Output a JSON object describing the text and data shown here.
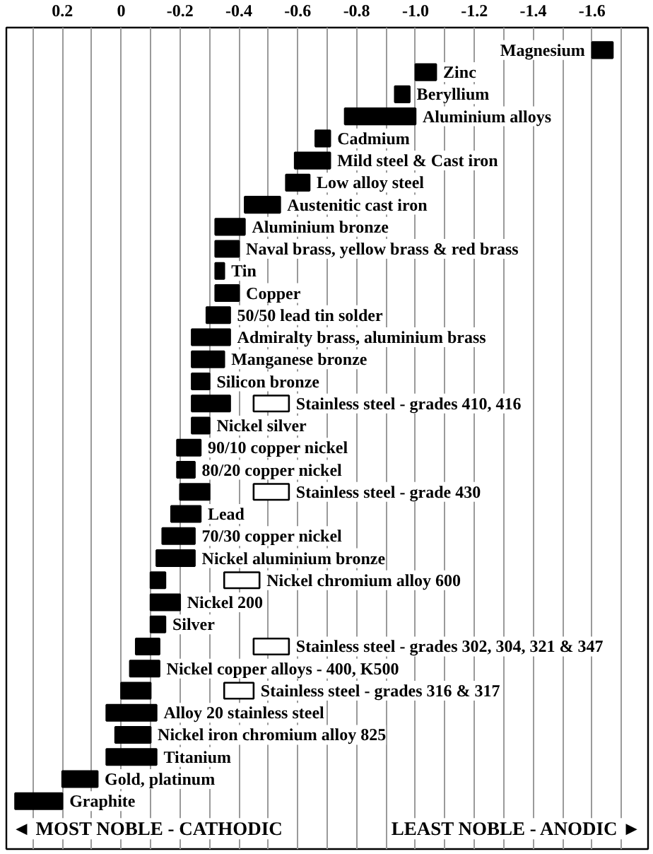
{
  "chart_data": {
    "type": "bar",
    "orientation": "horizontal",
    "categories": [
      "Magnesium",
      "Zinc",
      "Beryllium",
      "Aluminium alloys",
      "Cadmium",
      "Mild steel & Cast iron",
      "Low alloy steel",
      "Austenitic cast iron",
      "Aluminium bronze",
      "Naval brass, yellow brass & red brass",
      "Tin",
      "Copper",
      "50/50 lead tin solder",
      "Admiralty brass, aluminium brass",
      "Manganese bronze",
      "Silicon bronze",
      "Stainless steel - grades 410, 416",
      "Nickel silver",
      "90/10 copper nickel",
      "80/20 copper nickel",
      "Stainless steel - grade 430",
      "Lead",
      "70/30 copper nickel",
      "Nickel aluminium bronze",
      "Nickel chromium alloy 600",
      "Nickel 200",
      "Silver",
      "Stainless steel - grades 302, 304, 321 & 347",
      "Nickel copper alloys - 400, K500",
      "Stainless steel - grades 316 & 317",
      "Alloy 20 stainless steel",
      "Nickel iron chromium alloy 825",
      "Titanium",
      "Gold, platinum",
      "Graphite"
    ],
    "series": [
      {
        "color": "#000000",
        "base": [
          -1.6,
          -1.0,
          -0.93,
          -0.76,
          -0.66,
          -0.59,
          -0.56,
          -0.42,
          -0.32,
          -0.32,
          -0.32,
          -0.32,
          -0.29,
          -0.24,
          -0.24,
          -0.24,
          -0.24,
          -0.24,
          -0.19,
          -0.19,
          -0.2,
          -0.17,
          -0.14,
          -0.12,
          -0.1,
          -0.1,
          -0.1,
          -0.05,
          -0.03,
          0.0,
          0.05,
          0.02,
          0.05,
          0.2,
          0.36
        ],
        "values": [
          -0.07,
          -0.07,
          -0.05,
          -0.24,
          -0.05,
          -0.12,
          -0.08,
          -0.12,
          -0.1,
          -0.08,
          -0.03,
          -0.08,
          -0.08,
          -0.13,
          -0.11,
          -0.06,
          -0.13,
          -0.06,
          -0.08,
          -0.06,
          -0.1,
          -0.1,
          -0.11,
          -0.13,
          -0.05,
          -0.1,
          -0.05,
          -0.08,
          -0.1,
          -0.1,
          -0.17,
          -0.12,
          -0.17,
          -0.12,
          -0.16
        ]
      },
      {
        "color": "#ffffff",
        "base": [
          null,
          null,
          null,
          null,
          null,
          null,
          null,
          null,
          null,
          null,
          null,
          null,
          null,
          null,
          null,
          null,
          -0.45,
          null,
          null,
          null,
          -0.45,
          null,
          null,
          null,
          -0.35,
          null,
          null,
          -0.45,
          null,
          -0.35,
          null,
          null,
          null,
          null,
          null
        ],
        "values": [
          null,
          null,
          null,
          null,
          null,
          null,
          null,
          null,
          null,
          null,
          null,
          null,
          null,
          null,
          null,
          null,
          -0.12,
          null,
          null,
          null,
          -0.12,
          null,
          null,
          null,
          -0.12,
          null,
          null,
          -0.12,
          null,
          -0.1,
          null,
          null,
          null,
          null,
          null
        ]
      }
    ],
    "xlim": [
      0.39,
      -1.79
    ],
    "xticks": [
      {
        "value": 0.3,
        "label": null
      },
      0.2,
      {
        "value": 0.1,
        "label": null
      },
      0,
      {
        "value": -0.1,
        "label": null
      },
      -0.2,
      {
        "value": -0.3,
        "label": null
      },
      -0.4,
      {
        "value": -0.5,
        "label": null
      },
      -0.6,
      {
        "value": -0.7,
        "label": null
      },
      -0.8,
      {
        "value": -0.9,
        "label": null
      },
      {
        "value": -1.0,
        "label": "-1.0"
      },
      {
        "value": -1.1,
        "label": null
      },
      -1.2,
      {
        "value": -1.3,
        "label": null
      },
      -1.4,
      {
        "value": -1.5,
        "label": null
      },
      -1.6,
      {
        "value": -1.7,
        "label": null
      }
    ],
    "grid": "x",
    "tick_labels": "x",
    "annotations": [
      "◄ MOST NOBLE - CATHODIC",
      "LEAST NOBLE - ANODIC ►"
    ]
  }
}
